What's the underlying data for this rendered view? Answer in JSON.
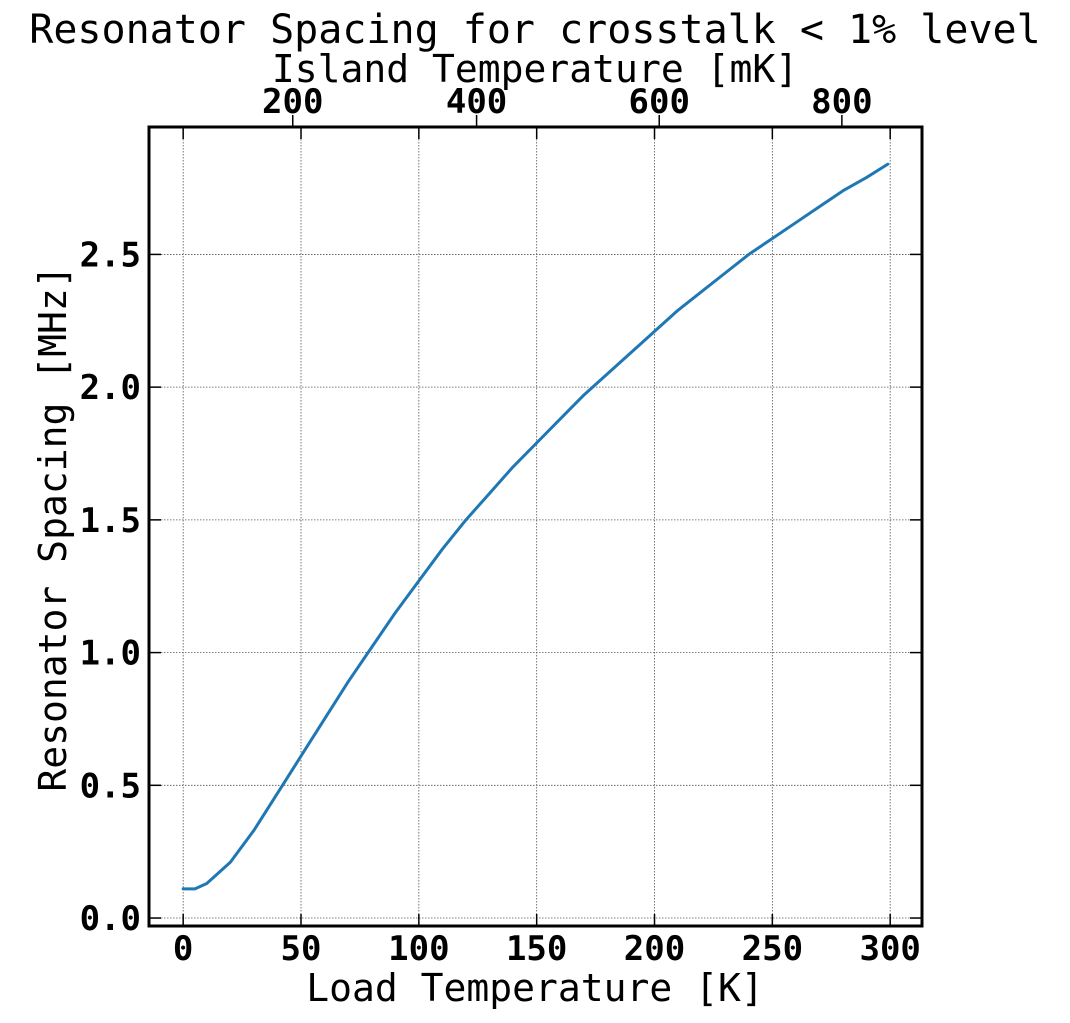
{
  "chart_data": {
    "type": "line",
    "title": "Resonator Spacing for crosstalk < 1% level",
    "xlabel": "Load Temperature [K]",
    "ylabel": "Resonator Spacing [MHz]",
    "top_xlabel": "Island Temperature [mK]",
    "xlim": [
      -14.5,
      313.5
    ],
    "ylim": [
      -0.03,
      2.98
    ],
    "x_ticks": [
      0,
      50,
      100,
      150,
      200,
      250,
      300
    ],
    "x_tick_labels": [
      "0",
      "50",
      "100",
      "150",
      "200",
      "250",
      "300"
    ],
    "y_ticks": [
      0.0,
      0.5,
      1.0,
      1.5,
      2.0,
      2.5
    ],
    "y_tick_labels": [
      "0.0",
      "0.5",
      "1.0",
      "1.5",
      "2.0",
      "2.5"
    ],
    "top_x_ticks_load_temp": [
      46.5,
      124.5,
      202,
      279.5
    ],
    "top_x_tick_labels": [
      "200",
      "400",
      "600",
      "800"
    ],
    "grid": true,
    "series": [
      {
        "color": "#1f77b4",
        "x": [
          0,
          5,
          10,
          20,
          30,
          40,
          50,
          60,
          70,
          80,
          90,
          100,
          110,
          120,
          130,
          140,
          150,
          160,
          170,
          180,
          190,
          200,
          210,
          220,
          230,
          240,
          250,
          260,
          270,
          280,
          290,
          299
        ],
        "y": [
          0.11,
          0.11,
          0.13,
          0.21,
          0.33,
          0.47,
          0.61,
          0.75,
          0.89,
          1.02,
          1.15,
          1.27,
          1.39,
          1.5,
          1.6,
          1.7,
          1.79,
          1.88,
          1.97,
          2.05,
          2.13,
          2.21,
          2.29,
          2.36,
          2.43,
          2.5,
          2.56,
          2.62,
          2.68,
          2.74,
          2.79,
          2.84
        ]
      }
    ]
  }
}
